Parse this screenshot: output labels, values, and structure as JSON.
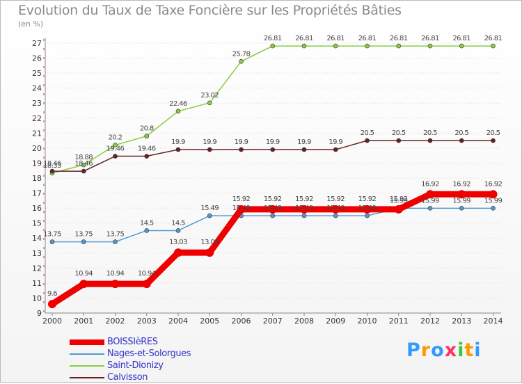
{
  "title": "Evolution du Taux de Taxe Foncière sur les Propriétés Bâties",
  "subtitle": "(en %)",
  "colors": {
    "BOISSIèRES": "#ee0000",
    "Nages-et-Solorgues": "#5599cc",
    "Saint-Dionizy": "#88cc44",
    "Calvisson": "#662222",
    "grid": "#dddddd",
    "axis": "#cc3333"
  },
  "logo": {
    "letters": [
      "P",
      "r",
      "o",
      "x",
      "i",
      "t",
      "i"
    ],
    "colors": [
      "#3399ff",
      "#ff9900",
      "#3399ff",
      "#ff3366",
      "#33cc33",
      "#ff9900",
      "#3399ff"
    ]
  },
  "chart_data": {
    "type": "line",
    "x": [
      "2000",
      "2001",
      "2002",
      "2003",
      "2004",
      "2005",
      "2006",
      "2007",
      "2008",
      "2009",
      "2010",
      "2011",
      "2012",
      "2013",
      "2014"
    ],
    "ylim": [
      9,
      27
    ],
    "yticks": [
      9,
      10,
      11,
      12,
      13,
      14,
      15,
      16,
      17,
      18,
      19,
      20,
      21,
      22,
      23,
      24,
      25,
      26,
      27
    ],
    "grid": "horizontal",
    "legend": "bottom-left",
    "series": [
      {
        "name": "BOISSIèRES",
        "values": [
          9.6,
          10.94,
          10.94,
          10.94,
          13.03,
          13.03,
          15.92,
          15.92,
          15.92,
          15.92,
          15.92,
          15.92,
          16.92,
          16.92,
          16.92
        ],
        "labels": [
          "9.6",
          "10.94",
          "10.94",
          "10.94",
          "13.03",
          "13.03",
          "15.92",
          "15.92",
          "15.92",
          "15.92",
          "15.92",
          "15.92",
          "16.92",
          "16.92",
          "16.92"
        ]
      },
      {
        "name": "Nages-et-Solorgues",
        "values": [
          13.75,
          13.75,
          13.75,
          14.5,
          14.5,
          15.49,
          15.49,
          15.49,
          15.49,
          15.49,
          15.49,
          15.99,
          15.99,
          15.99,
          15.99
        ],
        "labels": [
          "13.75",
          "13.75",
          "13.75",
          "14.5",
          "14.5",
          "15.49",
          "15.49",
          "15.49",
          "15.49",
          "15.49",
          "15.49",
          "15.99",
          "15.99",
          "15.99",
          "15.99"
        ]
      },
      {
        "name": "Saint-Dionizy",
        "values": [
          18.33,
          18.88,
          20.2,
          20.8,
          22.46,
          23.02,
          25.78,
          26.81,
          26.81,
          26.81,
          26.81,
          26.81,
          26.81,
          26.81,
          26.81
        ],
        "labels": [
          "18.33",
          "18.88",
          "20.2",
          "20.8",
          "22.46",
          "23.02",
          "25.78",
          "26.81",
          "26.81",
          "26.81",
          "26.81",
          "26.81",
          "26.81",
          "26.81",
          "26.81"
        ]
      },
      {
        "name": "Calvisson",
        "values": [
          18.46,
          18.46,
          19.46,
          19.46,
          19.9,
          19.9,
          19.9,
          19.9,
          19.9,
          19.9,
          20.5,
          20.5,
          20.5,
          20.5,
          20.5
        ],
        "labels": [
          "18.46",
          "18.46",
          "19.46",
          "19.46",
          "19.9",
          "19.9",
          "19.9",
          "19.9",
          "19.9",
          "19.9",
          "20.5",
          "20.5",
          "20.5",
          "20.5",
          "20.5"
        ]
      }
    ]
  }
}
